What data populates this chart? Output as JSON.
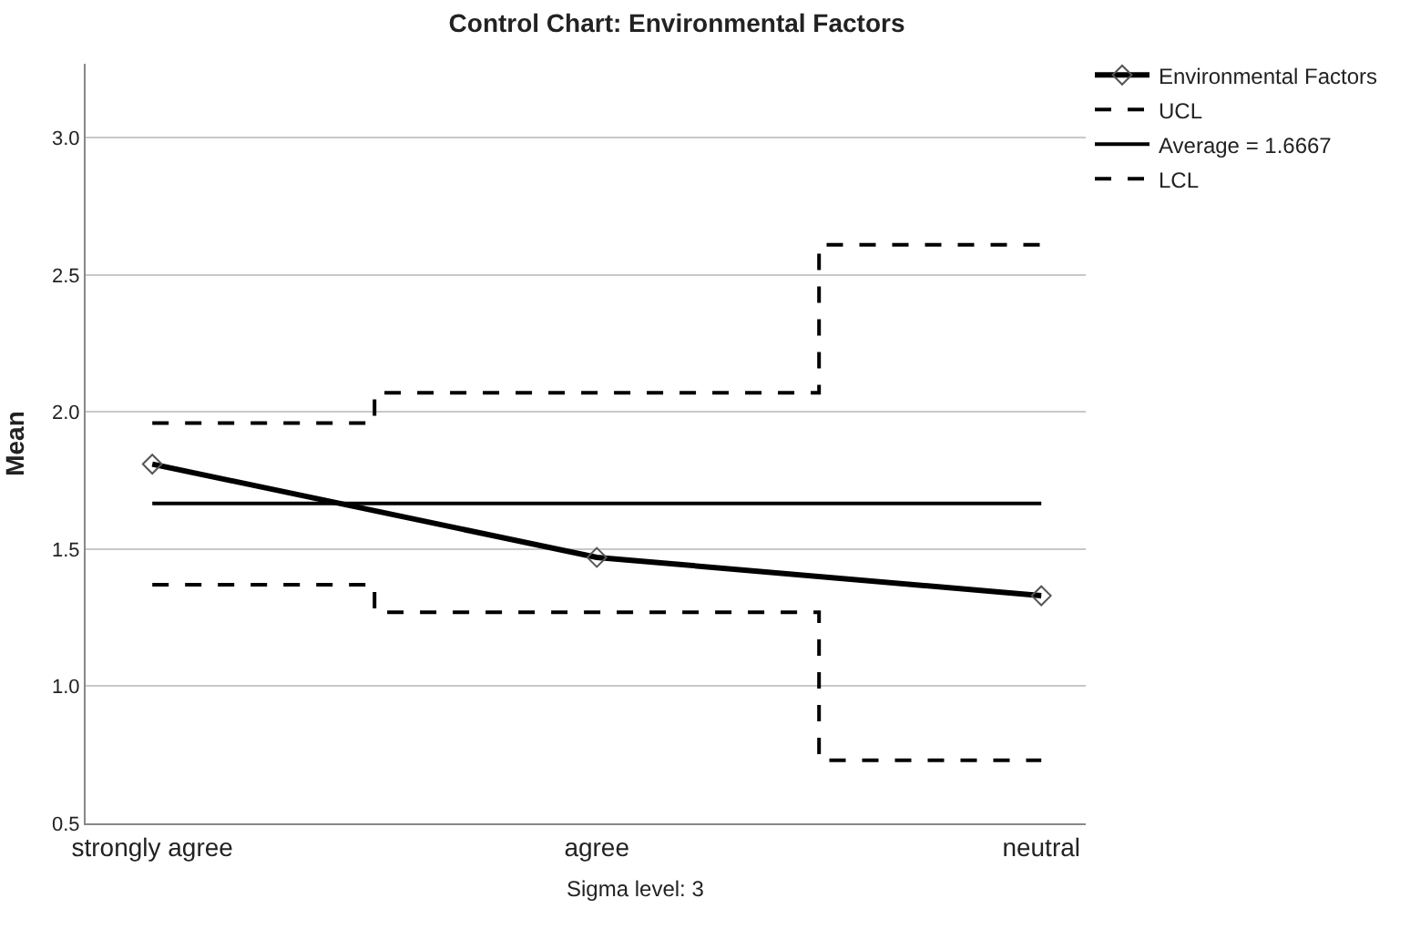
{
  "chart_data": {
    "type": "line",
    "title": "Control Chart: Environmental Factors",
    "ylabel": "Mean",
    "categories": [
      "strongly agree",
      "agree",
      "neutral"
    ],
    "series": [
      {
        "name": "Environmental Factors",
        "type": "line",
        "color": "#000000",
        "line_style": "solid",
        "marker": "diamond",
        "values": [
          1.81,
          1.47,
          1.33
        ]
      },
      {
        "name": "UCL",
        "type": "step",
        "color": "#000000",
        "line_style": "dashed",
        "marker": "none",
        "values": [
          1.96,
          2.07,
          2.61
        ]
      },
      {
        "name": "Average = 1.6667",
        "type": "line",
        "color": "#000000",
        "line_style": "solid",
        "marker": "none",
        "values": [
          1.6667,
          1.6667,
          1.6667
        ]
      },
      {
        "name": "LCL",
        "type": "step",
        "color": "#000000",
        "line_style": "dashed",
        "marker": "none",
        "values": [
          1.37,
          1.27,
          0.73
        ]
      }
    ],
    "ylim": [
      0.5,
      3.27
    ],
    "yticks": [
      0.5,
      {
        "value": 1,
        "label": "1.0"
      },
      1.5,
      {
        "value": 2,
        "label": "2.0"
      },
      2.5,
      {
        "value": 3,
        "label": "3.0"
      }
    ],
    "grid": "y",
    "legend": "top right",
    "annotations": [
      "Sigma level: 3"
    ]
  }
}
